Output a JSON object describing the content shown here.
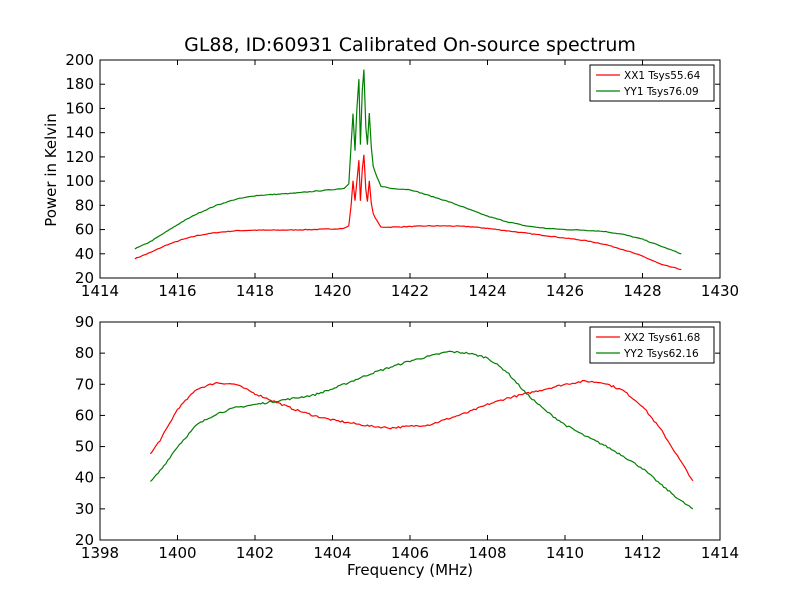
{
  "page": {
    "title": "GL88, ID:60931 Calibrated On-source spectrum"
  },
  "chart_data": [
    {
      "type": "line",
      "ylabel": "Power in Kelvin",
      "xlabel": "",
      "xlim": [
        1414,
        1430
      ],
      "ylim": [
        20,
        200
      ],
      "xticks": [
        1414,
        1416,
        1418,
        1420,
        1422,
        1424,
        1426,
        1428,
        1430
      ],
      "yticks": [
        20,
        40,
        60,
        80,
        100,
        120,
        140,
        160,
        180,
        200
      ],
      "grid": false,
      "legend_position": "top-right",
      "series": [
        {
          "name": "XX1 Tsys55.64",
          "color": "#ff0000",
          "points": [
            [
              1414.9,
              36
            ],
            [
              1415.3,
              41
            ],
            [
              1415.7,
              47
            ],
            [
              1416.1,
              51.5
            ],
            [
              1416.5,
              55
            ],
            [
              1417,
              57.5
            ],
            [
              1417.5,
              59
            ],
            [
              1418,
              59.5
            ],
            [
              1418.5,
              59.5
            ],
            [
              1419,
              59.7
            ],
            [
              1419.5,
              60
            ],
            [
              1420,
              60.5
            ],
            [
              1420.3,
              61
            ],
            [
              1420.42,
              63
            ],
            [
              1420.48,
              80
            ],
            [
              1420.53,
              100
            ],
            [
              1420.58,
              84
            ],
            [
              1420.63,
              100
            ],
            [
              1420.68,
              117
            ],
            [
              1420.72,
              84
            ],
            [
              1420.77,
              110
            ],
            [
              1420.81,
              122
            ],
            [
              1420.86,
              93
            ],
            [
              1420.9,
              83
            ],
            [
              1420.95,
              100
            ],
            [
              1421,
              82
            ],
            [
              1421.05,
              73
            ],
            [
              1421.15,
              67
            ],
            [
              1421.25,
              62
            ],
            [
              1421.5,
              62
            ],
            [
              1422,
              62.5
            ],
            [
              1422.5,
              63
            ],
            [
              1423,
              63
            ],
            [
              1423.5,
              62.5
            ],
            [
              1424,
              61
            ],
            [
              1424.5,
              59
            ],
            [
              1425,
              57
            ],
            [
              1425.5,
              55
            ],
            [
              1426,
              53
            ],
            [
              1426.5,
              51
            ],
            [
              1427,
              48
            ],
            [
              1427.5,
              43.5
            ],
            [
              1428,
              38
            ],
            [
              1428.5,
              31
            ],
            [
              1429,
              27
            ]
          ]
        },
        {
          "name": "YY1 Tsys76.09",
          "color": "#008000",
          "points": [
            [
              1414.9,
              44
            ],
            [
              1415.3,
              50
            ],
            [
              1415.7,
              58
            ],
            [
              1416.1,
              66
            ],
            [
              1416.5,
              73
            ],
            [
              1417,
              80
            ],
            [
              1417.5,
              85
            ],
            [
              1418,
              88
            ],
            [
              1418.5,
              89
            ],
            [
              1419,
              90
            ],
            [
              1419.5,
              91.5
            ],
            [
              1420,
              93
            ],
            [
              1420.3,
              94
            ],
            [
              1420.42,
              98
            ],
            [
              1420.48,
              130
            ],
            [
              1420.53,
              156
            ],
            [
              1420.58,
              125
            ],
            [
              1420.63,
              160
            ],
            [
              1420.68,
              184
            ],
            [
              1420.72,
              130
            ],
            [
              1420.77,
              175
            ],
            [
              1420.81,
              192
            ],
            [
              1420.86,
              145
            ],
            [
              1420.9,
              130
            ],
            [
              1420.95,
              156
            ],
            [
              1421,
              128
            ],
            [
              1421.05,
              112
            ],
            [
              1421.15,
              103
            ],
            [
              1421.25,
              96
            ],
            [
              1421.5,
              94
            ],
            [
              1422,
              93
            ],
            [
              1422.5,
              88
            ],
            [
              1423,
              83
            ],
            [
              1423.5,
              77
            ],
            [
              1424,
              71
            ],
            [
              1424.5,
              66.5
            ],
            [
              1425,
              63
            ],
            [
              1425.5,
              61
            ],
            [
              1426,
              60
            ],
            [
              1426.5,
              59.5
            ],
            [
              1427,
              58.5
            ],
            [
              1427.5,
              56
            ],
            [
              1428,
              52
            ],
            [
              1428.5,
              46
            ],
            [
              1429,
              40
            ]
          ]
        }
      ]
    },
    {
      "type": "line",
      "ylabel": "",
      "xlabel": "Frequency (MHz)",
      "xlim": [
        1398,
        1414
      ],
      "ylim": [
        20,
        90
      ],
      "xticks": [
        1398,
        1400,
        1402,
        1404,
        1406,
        1408,
        1410,
        1412,
        1414
      ],
      "yticks": [
        20,
        30,
        40,
        50,
        60,
        70,
        80,
        90
      ],
      "grid": false,
      "legend_position": "top-right",
      "series": [
        {
          "name": "XX2 Tsys61.68",
          "color": "#ff0000",
          "points": [
            [
              1399.3,
              47.5
            ],
            [
              1399.6,
              53
            ],
            [
              1400,
              62
            ],
            [
              1400.5,
              68.5
            ],
            [
              1401,
              70.5
            ],
            [
              1401.5,
              70
            ],
            [
              1402,
              67
            ],
            [
              1402.5,
              64.5
            ],
            [
              1403,
              62
            ],
            [
              1403.5,
              60
            ],
            [
              1404,
              58.5
            ],
            [
              1404.5,
              57.5
            ],
            [
              1405,
              56.5
            ],
            [
              1405.5,
              56
            ],
            [
              1406,
              56.5
            ],
            [
              1406.5,
              57
            ],
            [
              1407,
              59
            ],
            [
              1407.5,
              61
            ],
            [
              1408,
              63.5
            ],
            [
              1408.5,
              65.5
            ],
            [
              1409,
              67
            ],
            [
              1409.5,
              68.5
            ],
            [
              1410,
              70
            ],
            [
              1410.5,
              71
            ],
            [
              1411,
              70.5
            ],
            [
              1411.5,
              68
            ],
            [
              1412,
              63
            ],
            [
              1412.5,
              55
            ],
            [
              1413,
              45
            ],
            [
              1413.3,
              39
            ]
          ]
        },
        {
          "name": "YY2 Tsys62.16",
          "color": "#008000",
          "points": [
            [
              1399.3,
              38.5
            ],
            [
              1399.6,
              43
            ],
            [
              1400,
              50
            ],
            [
              1400.5,
              57
            ],
            [
              1401,
              60.5
            ],
            [
              1401.5,
              62.5
            ],
            [
              1402,
              63.5
            ],
            [
              1402.5,
              64.5
            ],
            [
              1403,
              65.5
            ],
            [
              1403.5,
              66.5
            ],
            [
              1404,
              68.5
            ],
            [
              1404.5,
              71
            ],
            [
              1405,
              73.5
            ],
            [
              1405.5,
              75.5
            ],
            [
              1406,
              77.5
            ],
            [
              1406.5,
              79
            ],
            [
              1407,
              80.5
            ],
            [
              1407.5,
              80
            ],
            [
              1408,
              78.5
            ],
            [
              1408.5,
              74
            ],
            [
              1409,
              67
            ],
            [
              1409.5,
              61.5
            ],
            [
              1410,
              57
            ],
            [
              1410.5,
              53.5
            ],
            [
              1411,
              50.5
            ],
            [
              1411.5,
              47
            ],
            [
              1412,
              43
            ],
            [
              1412.5,
              37.5
            ],
            [
              1413,
              32.5
            ],
            [
              1413.3,
              30
            ]
          ]
        }
      ]
    }
  ]
}
